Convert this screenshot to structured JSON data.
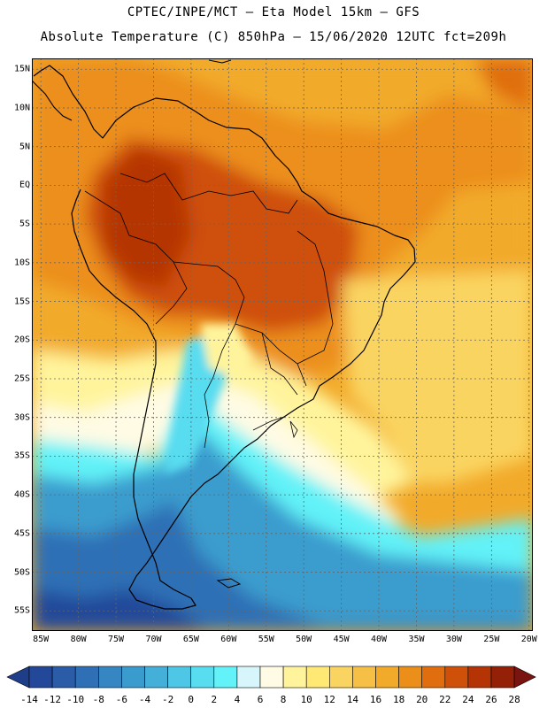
{
  "title_line1": "CPTEC/INPE/MCT —  Eta Model 15km — GFS",
  "title_line2": "Absolute Temperature (C) 850hPa — 15/06/2020 12UTC fct=209h",
  "map": {
    "region": "South America",
    "lat_labels": [
      "15N",
      "10N",
      "5N",
      "EQ",
      "5S",
      "10S",
      "15S",
      "20S",
      "25S",
      "30S",
      "35S",
      "40S",
      "45S",
      "50S",
      "55S"
    ],
    "lat_values": [
      15,
      10,
      5,
      0,
      -5,
      -10,
      -15,
      -20,
      -25,
      -30,
      -35,
      -40,
      -45,
      -50,
      -55
    ],
    "lon_labels": [
      "85W",
      "80W",
      "75W",
      "70W",
      "65W",
      "60W",
      "55W",
      "50W",
      "45W",
      "40W",
      "35W",
      "30W",
      "25W",
      "20W"
    ],
    "lon_values": [
      -85,
      -80,
      -75,
      -70,
      -65,
      -60,
      -55,
      -50,
      -45,
      -40,
      -35,
      -30,
      -25,
      -20
    ]
  },
  "colorbar": {
    "labels": [
      "-14",
      "-12",
      "-10",
      "-8",
      "-6",
      "-4",
      "-2",
      "0",
      "2",
      "4",
      "6",
      "8",
      "10",
      "12",
      "14",
      "16",
      "18",
      "20",
      "22",
      "24",
      "26",
      "28"
    ],
    "values": [
      -14,
      -12,
      -10,
      -8,
      -6,
      -4,
      -2,
      0,
      2,
      4,
      6,
      8,
      10,
      12,
      14,
      16,
      18,
      20,
      22,
      24,
      26,
      28
    ],
    "colors": [
      "#1f3e8a",
      "#23489a",
      "#2a5ca8",
      "#2f6fb5",
      "#3586c2",
      "#3a9cce",
      "#44b0da",
      "#4ec6e6",
      "#58dcf0",
      "#62f2f8",
      "#d6f6fc",
      "#fffbe4",
      "#fff49c",
      "#ffe874",
      "#fad460",
      "#f6c046",
      "#f2aa2a",
      "#ec8f1a",
      "#e06e0e",
      "#cf5008",
      "#b53406",
      "#942008",
      "#7a1410"
    ]
  },
  "colors": {
    "land_outline": "#000000",
    "grid": "#666666"
  }
}
